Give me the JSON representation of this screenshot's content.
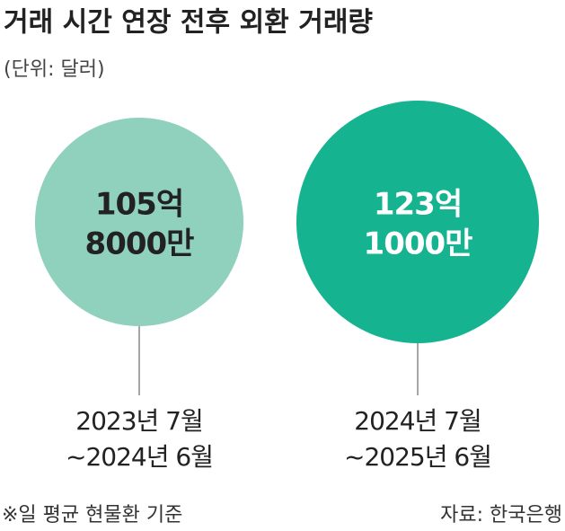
{
  "chart_data": {
    "type": "bubble",
    "title": "거래 시간 연장 전후 외환 거래량",
    "subtitle": "(단위: 달러)",
    "categories": [
      [
        "2023년 7월",
        "~2024년 6월"
      ],
      [
        "2024년 7월",
        "~2025년 6월"
      ]
    ],
    "values": [
      10580000000,
      12310000000
    ],
    "value_labels": [
      [
        "105억",
        "8000만"
      ],
      [
        "123억",
        "1000만"
      ]
    ],
    "colors": [
      "#8fd1bc",
      "#16b391"
    ],
    "footnote": "※일 평균 현물환 기준",
    "source": "자료: 한국은행"
  }
}
